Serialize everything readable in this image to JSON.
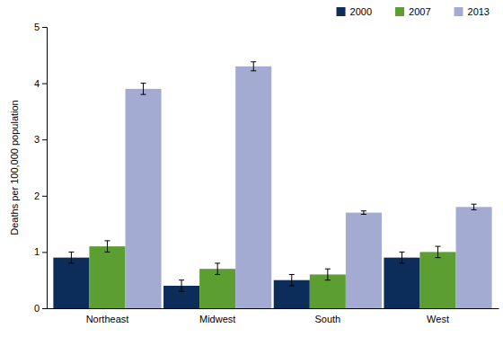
{
  "chart_data": {
    "type": "bar",
    "y_label": "Deaths per 100,000 population",
    "categories": [
      "Northeast",
      "Midwest",
      "South",
      "West"
    ],
    "series": [
      {
        "name": "2000",
        "color": "#0c2d5a",
        "values": [
          0.9,
          0.4,
          0.5,
          0.9
        ],
        "errors": [
          0.1,
          0.1,
          0.1,
          0.1
        ]
      },
      {
        "name": "2007",
        "color": "#5c9e32",
        "values": [
          1.1,
          0.7,
          0.6,
          1.0
        ],
        "errors": [
          0.1,
          0.1,
          0.1,
          0.1
        ]
      },
      {
        "name": "2013",
        "color": "#a4abd3",
        "values": [
          3.9,
          4.3,
          1.7,
          1.8
        ],
        "errors": [
          0.1,
          0.08,
          0.03,
          0.05
        ]
      }
    ],
    "ylim": [
      0,
      5
    ],
    "yticks": [
      0,
      1,
      2,
      3,
      4,
      5
    ],
    "grid": false,
    "legend": "top-right"
  }
}
